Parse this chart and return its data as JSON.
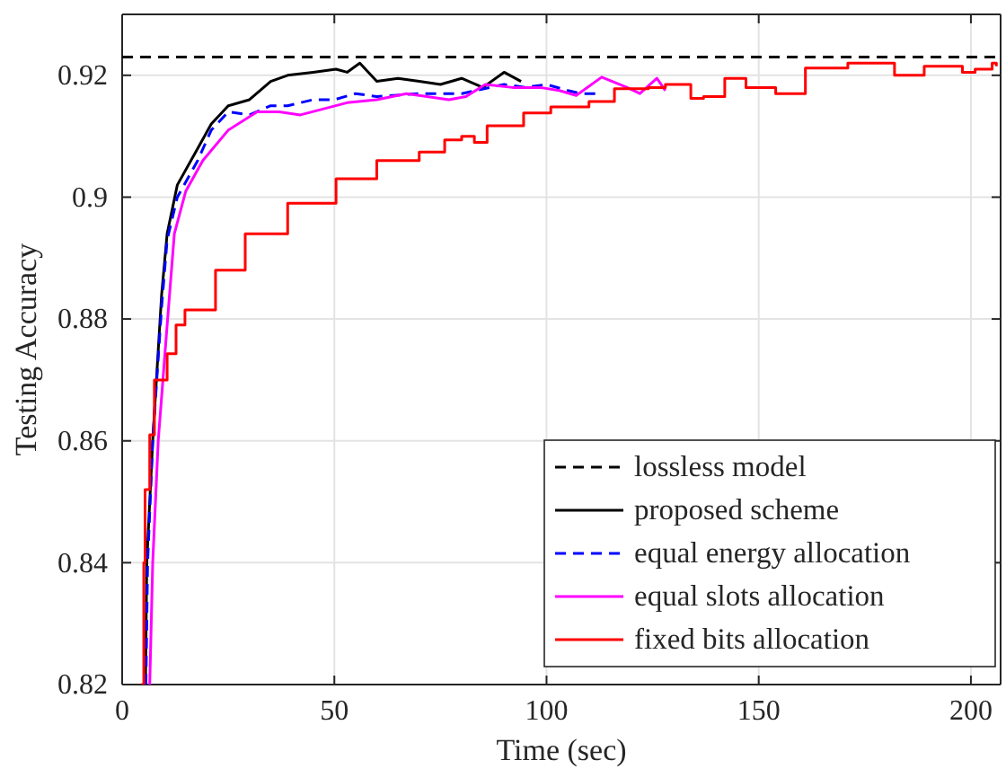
{
  "chart_data": {
    "type": "line",
    "xlabel": "Time (sec)",
    "ylabel": "Testing Accuracy",
    "xlim": [
      0,
      207
    ],
    "ylim": [
      0.82,
      0.93
    ],
    "xticks": [
      0,
      50,
      100,
      150,
      200
    ],
    "yticks": [
      0.82,
      0.84,
      0.86,
      0.88,
      0.9,
      0.92
    ],
    "grid": true,
    "legend": "bottom right",
    "series": [
      {
        "name": "lossless model",
        "color": "#000000",
        "line_style": "dashed",
        "x": [
          0,
          207
        ],
        "values": [
          0.923,
          0.923
        ]
      },
      {
        "name": "proposed scheme",
        "color": "#000000",
        "line_style": "solid",
        "x": [
          5.5,
          5.8,
          7.2,
          9.3,
          10.6,
          13,
          17.8,
          21,
          25,
          30,
          35,
          39,
          45,
          50.4,
          53,
          56,
          60,
          65,
          70,
          75,
          80,
          85,
          90,
          94
        ],
        "values": [
          0.82,
          0.84,
          0.86,
          0.884,
          0.894,
          0.902,
          0.908,
          0.912,
          0.915,
          0.916,
          0.919,
          0.92,
          0.9205,
          0.921,
          0.9205,
          0.922,
          0.919,
          0.9195,
          0.919,
          0.9185,
          0.9195,
          0.918,
          0.9205,
          0.919
        ]
      },
      {
        "name": "equal energy allocation",
        "color": "#0000ff",
        "line_style": "dashed",
        "x": [
          5.6,
          6,
          7.2,
          9.3,
          10.6,
          13,
          17.8,
          21,
          25,
          30,
          35,
          39,
          45,
          50,
          55,
          60,
          70,
          80,
          90,
          95,
          100,
          105,
          108,
          112
        ],
        "values": [
          0.82,
          0.84,
          0.86,
          0.882,
          0.893,
          0.9,
          0.906,
          0.911,
          0.914,
          0.9135,
          0.915,
          0.915,
          0.916,
          0.916,
          0.917,
          0.9165,
          0.917,
          0.917,
          0.9185,
          0.918,
          0.9185,
          0.9175,
          0.917,
          0.917
        ]
      },
      {
        "name": "equal slots allocation",
        "color": "#ff00ff",
        "line_style": "solid",
        "x": [
          6.5,
          7.2,
          8.5,
          10.6,
          12.3,
          15,
          19,
          25,
          31.8,
          37,
          42,
          53,
          60,
          67,
          77,
          81,
          85.6,
          92,
          98.5,
          103,
          107,
          113,
          119,
          122,
          126,
          128
        ],
        "values": [
          0.82,
          0.84,
          0.86,
          0.879,
          0.894,
          0.901,
          0.906,
          0.911,
          0.914,
          0.914,
          0.9135,
          0.9155,
          0.916,
          0.917,
          0.916,
          0.9165,
          0.9185,
          0.918,
          0.918,
          0.9175,
          0.9167,
          0.9197,
          0.918,
          0.917,
          0.9195,
          0.9175
        ]
      },
      {
        "name": "fixed bits allocation",
        "type": "step",
        "color": "#ff0000",
        "line_style": "solid",
        "x": [
          4.5,
          5.1,
          5.4,
          6.5,
          7.6,
          10.6,
          12.7,
          14.8,
          22,
          29,
          39,
          50.4,
          60,
          70,
          76,
          80,
          83,
          86,
          94.6,
          101,
          110,
          116,
          124,
          128,
          134,
          137,
          142,
          147,
          154,
          161,
          171,
          182,
          189,
          198,
          201,
          205,
          206
        ],
        "values": [
          0.82,
          0.84,
          0.852,
          0.861,
          0.87,
          0.8743,
          0.879,
          0.8815,
          0.888,
          0.894,
          0.899,
          0.903,
          0.906,
          0.9074,
          0.9094,
          0.91,
          0.909,
          0.9117,
          0.9138,
          0.9148,
          0.9157,
          0.9178,
          0.918,
          0.9185,
          0.9162,
          0.9165,
          0.9195,
          0.918,
          0.917,
          0.9212,
          0.922,
          0.92,
          0.9215,
          0.9205,
          0.921,
          0.922,
          0.9215
        ]
      }
    ]
  }
}
